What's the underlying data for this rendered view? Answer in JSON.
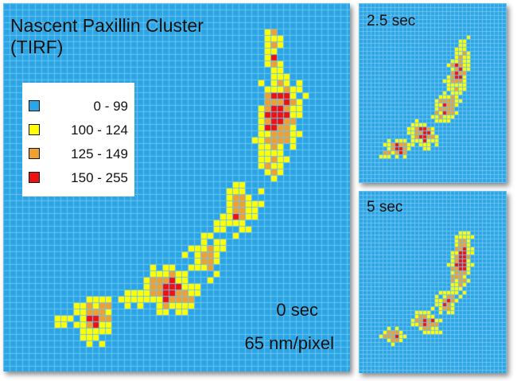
{
  "main_panel": {
    "title_line1": "Nascent Paxillin Cluster",
    "title_line2": "(TIRF)",
    "time_label": "0 sec",
    "scale_label": "65 nm/pixel"
  },
  "legend": {
    "items": [
      {
        "range": "0 - 99",
        "color": "#2aa5e6"
      },
      {
        "range": "100 - 124",
        "color": "#ffff00"
      },
      {
        "range": "125 - 149",
        "color": "#f0a030"
      },
      {
        "range": "150 - 255",
        "color": "#ee1111"
      }
    ]
  },
  "panel_2_5": {
    "time_label": "2.5 sec"
  },
  "panel_5": {
    "time_label": "5 sec"
  },
  "colors": {
    "background": "#2aa5e6",
    "grid_line": "#6fc3ee",
    "low": "#2aa5e6",
    "mid1": "#ffff00",
    "mid2": "#f0a030",
    "high": "#ee1111"
  }
}
